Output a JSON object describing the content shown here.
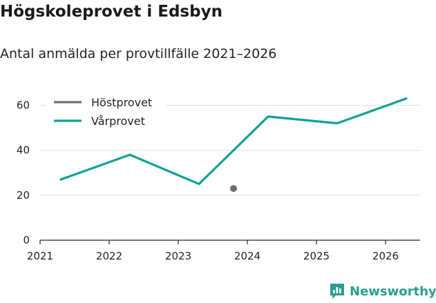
{
  "header": {
    "title": "Högskoleprovet i Edsbyn",
    "subtitle": "Antal anmälda per provtillfälle 2021–2026"
  },
  "brand": {
    "name": "Newsworthy",
    "icon": "newsworthy-logo-icon",
    "color": "#2a9d8f"
  },
  "chart_data": {
    "type": "line",
    "title": "Högskoleprovet i Edsbyn",
    "subtitle": "Antal anmälda per provtillfälle 2021–2026",
    "xlabel": "",
    "ylabel": "",
    "xlim": [
      2021,
      2026.5
    ],
    "ylim": [
      0,
      70
    ],
    "x_ticks": [
      "2021",
      "2022",
      "2023",
      "2024",
      "2025",
      "2026"
    ],
    "y_ticks": [
      "0",
      "20",
      "40",
      "60"
    ],
    "grid": true,
    "legend_position": "top-left",
    "series": [
      {
        "name": "Höstprovet",
        "color": "#707070",
        "x": [
          2023.8
        ],
        "values": [
          23
        ]
      },
      {
        "name": "Vårprovet",
        "color": "#0fa195",
        "x": [
          2021.3,
          2022.3,
          2023.3,
          2024.3,
          2025.3,
          2026.3
        ],
        "values": [
          27,
          38,
          25,
          55,
          52,
          63
        ]
      }
    ]
  }
}
